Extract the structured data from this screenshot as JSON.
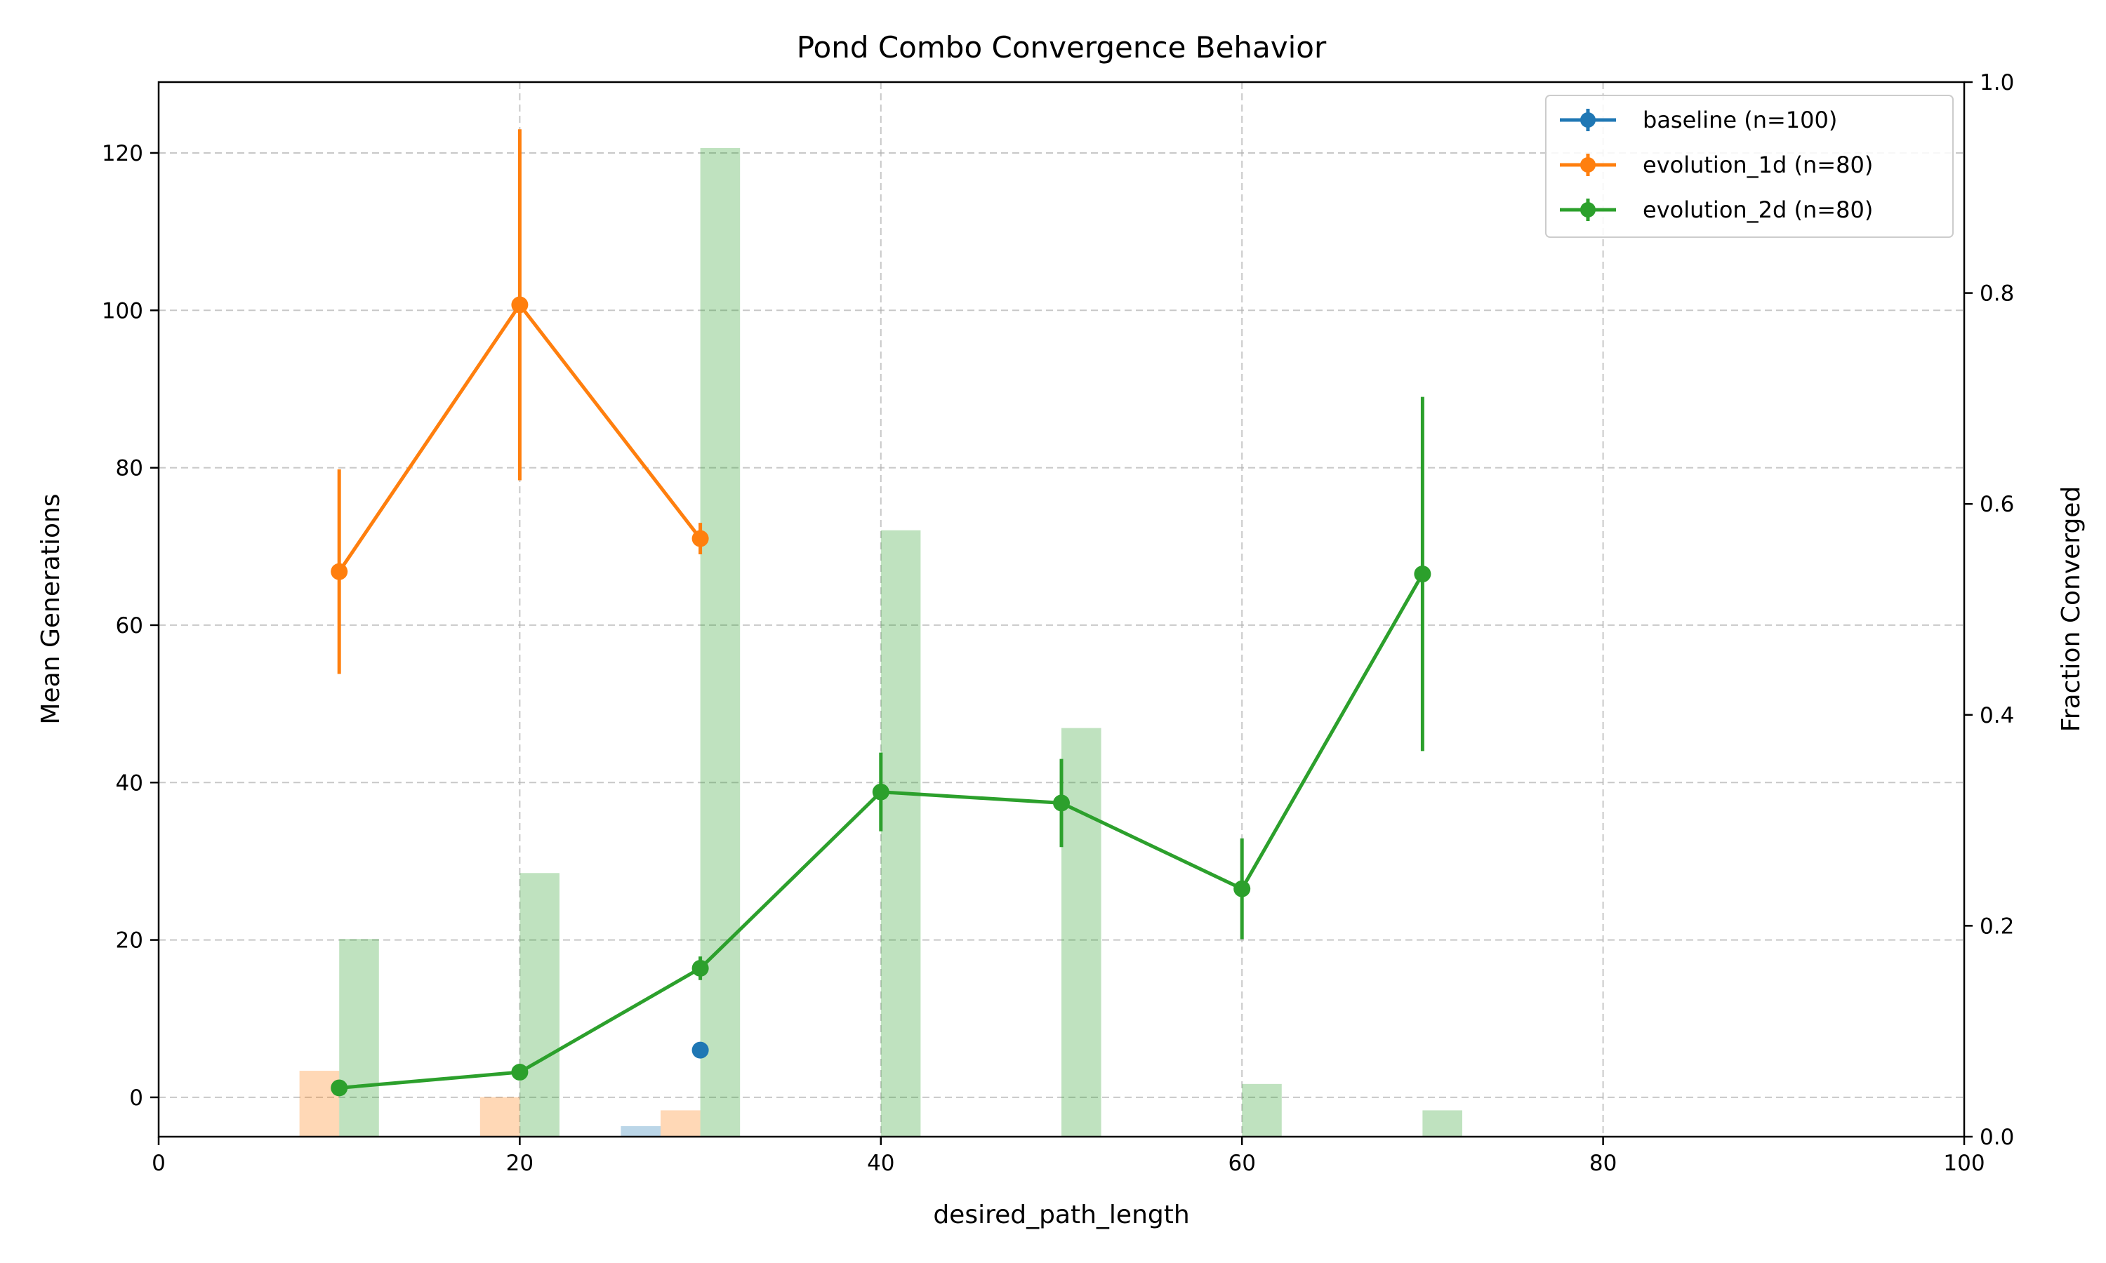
{
  "chart_data": {
    "type": "line",
    "title": "Pond Combo Convergence Behavior",
    "xlabel": "desired_path_length",
    "ylabel": "Mean Generations",
    "ylabel_right": "Fraction Converged",
    "xlim": [
      0,
      100
    ],
    "ylim": [
      -5,
      129
    ],
    "ylim_right": [
      0,
      1.0
    ],
    "x_ticks": [
      "0",
      "20",
      "40",
      "60",
      "80",
      "100"
    ],
    "y_ticks": [
      "0",
      "20",
      "40",
      "60",
      "80",
      "100",
      "120"
    ],
    "y_ticks_right": [
      "0.0",
      "0.2",
      "0.4",
      "0.6",
      "0.8",
      "1.0"
    ],
    "grid": true,
    "legend_position": "top-right",
    "series": [
      {
        "name": "baseline (n=100)",
        "color": "#1f77b4",
        "points": [
          {
            "x": 30,
            "y": 6.0,
            "err": 0
          }
        ],
        "fraction_converged": [
          {
            "x": 30,
            "f": 0.01
          }
        ]
      },
      {
        "name": "evolution_1d (n=80)",
        "color": "#ff7f0e",
        "points": [
          {
            "x": 10,
            "y": 66.8,
            "err": 13.0
          },
          {
            "x": 20,
            "y": 100.7,
            "err": 22.3
          },
          {
            "x": 30,
            "y": 71.0,
            "err": 2.0
          }
        ],
        "fraction_converged": [
          {
            "x": 10,
            "f": 0.0625
          },
          {
            "x": 20,
            "f": 0.0375
          },
          {
            "x": 30,
            "f": 0.025
          }
        ]
      },
      {
        "name": "evolution_2d (n=80)",
        "color": "#2ca02c",
        "points": [
          {
            "x": 10,
            "y": 1.2,
            "err": 0.5
          },
          {
            "x": 20,
            "y": 3.2,
            "err": 0.5
          },
          {
            "x": 30,
            "y": 16.4,
            "err": 1.5
          },
          {
            "x": 40,
            "y": 38.8,
            "err": 5.0
          },
          {
            "x": 50,
            "y": 37.4,
            "err": 5.6
          },
          {
            "x": 60,
            "y": 26.5,
            "err": 6.4
          },
          {
            "x": 70,
            "y": 66.5,
            "err": 22.5
          }
        ],
        "fraction_converged": [
          {
            "x": 10,
            "f": 0.1875
          },
          {
            "x": 20,
            "f": 0.25
          },
          {
            "x": 30,
            "f": 0.9375
          },
          {
            "x": 40,
            "f": 0.575
          },
          {
            "x": 50,
            "f": 0.3875
          },
          {
            "x": 60,
            "f": 0.05
          },
          {
            "x": 70,
            "f": 0.025
          }
        ]
      }
    ]
  }
}
